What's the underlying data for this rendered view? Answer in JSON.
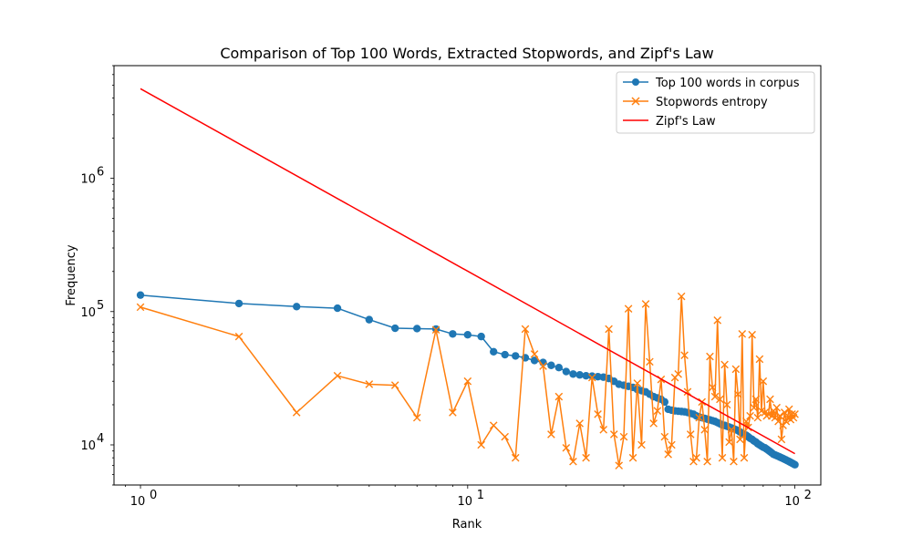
{
  "chart_data": {
    "type": "line",
    "title": "Comparison of Top 100 Words, Extracted Stopwords, and Zipf's Law",
    "xlabel": "Rank",
    "ylabel": "Frequency",
    "xscale": "log",
    "yscale": "log",
    "xlim": [
      0.83,
      120
    ],
    "ylim": [
      5000,
      7000000
    ],
    "x_ticks": [
      {
        "value": 1,
        "base": "10",
        "exp": "0"
      },
      {
        "value": 10,
        "base": "10",
        "exp": "1"
      },
      {
        "value": 100,
        "base": "10",
        "exp": "2"
      }
    ],
    "y_ticks": [
      {
        "value": 10000,
        "base": "10",
        "exp": "4"
      },
      {
        "value": 100000,
        "base": "10",
        "exp": "5"
      },
      {
        "value": 1000000,
        "base": "10",
        "exp": "6"
      }
    ],
    "grid": false,
    "legend_position": "top-right",
    "series": [
      {
        "name": "Top 100 words in corpus",
        "color": "#1f77b4",
        "marker": "circle",
        "x": [
          1,
          2,
          3,
          4,
          5,
          6,
          7,
          8,
          9,
          10,
          11,
          12,
          13,
          14,
          15,
          16,
          17,
          18,
          19,
          20,
          21,
          22,
          23,
          24,
          25,
          26,
          27,
          28,
          29,
          30,
          31,
          32,
          33,
          34,
          35,
          36,
          37,
          38,
          39,
          40,
          41,
          42,
          43,
          44,
          45,
          46,
          47,
          48,
          49,
          50,
          51,
          52,
          53,
          54,
          55,
          56,
          57,
          58,
          59,
          60,
          61,
          62,
          63,
          64,
          65,
          66,
          67,
          68,
          69,
          70,
          71,
          72,
          73,
          74,
          75,
          76,
          77,
          78,
          79,
          80,
          81,
          82,
          83,
          84,
          85,
          86,
          87,
          88,
          89,
          90,
          91,
          92,
          93,
          94,
          95,
          96,
          97,
          98,
          99,
          100
        ],
        "y": [
          133000,
          115000,
          109000,
          106000,
          87000,
          75000,
          74500,
          74000,
          68000,
          67000,
          65000,
          50000,
          47500,
          46500,
          45000,
          43000,
          41500,
          39500,
          38000,
          35500,
          34000,
          33500,
          33000,
          32800,
          32500,
          32200,
          31500,
          30000,
          28500,
          28000,
          27500,
          27000,
          26000,
          25500,
          25000,
          24000,
          23000,
          22500,
          22000,
          21000,
          18500,
          18200,
          18000,
          17900,
          17800,
          17700,
          17500,
          17200,
          17000,
          16500,
          16200,
          16000,
          15800,
          15600,
          15400,
          15200,
          15000,
          14700,
          14400,
          14100,
          14000,
          13800,
          13600,
          13400,
          13200,
          13000,
          12800,
          12500,
          12200,
          12000,
          11800,
          11500,
          11200,
          11000,
          10700,
          10500,
          10200,
          10000,
          9800,
          9600,
          9500,
          9300,
          9100,
          8900,
          8700,
          8500,
          8400,
          8300,
          8200,
          8100,
          8000,
          7900,
          7800,
          7700,
          7600,
          7500,
          7400,
          7300,
          7200,
          7100
        ]
      },
      {
        "name": "Stopwords entropy",
        "color": "#ff7f0e",
        "marker": "x",
        "x": [
          1,
          2,
          3,
          4,
          5,
          6,
          7,
          8,
          9,
          10,
          11,
          12,
          13,
          14,
          15,
          16,
          17,
          18,
          19,
          20,
          21,
          22,
          23,
          24,
          25,
          26,
          27,
          28,
          29,
          30,
          31,
          32,
          33,
          34,
          35,
          36,
          37,
          38,
          39,
          40,
          41,
          42,
          43,
          44,
          45,
          46,
          47,
          48,
          49,
          50,
          51,
          52,
          53,
          54,
          55,
          56,
          57,
          58,
          59,
          60,
          61,
          62,
          63,
          64,
          65,
          66,
          67,
          68,
          69,
          70,
          71,
          72,
          73,
          74,
          75,
          76,
          77,
          78,
          79,
          80,
          81,
          82,
          83,
          84,
          85,
          86,
          87,
          88,
          89,
          90,
          91,
          92,
          93,
          94,
          95,
          96,
          97,
          98,
          99,
          100
        ],
        "y": [
          108000,
          65000,
          17500,
          33000,
          28500,
          28000,
          16000,
          73000,
          17500,
          30000,
          10000,
          14000,
          11500,
          8000,
          74000,
          48000,
          39000,
          12000,
          23000,
          9500,
          7500,
          14500,
          8000,
          32000,
          17000,
          13000,
          74000,
          12000,
          7000,
          11500,
          105000,
          8000,
          29000,
          10000,
          114000,
          42000,
          14500,
          18000,
          31000,
          11500,
          8500,
          10000,
          32000,
          34000,
          130000,
          47000,
          25000,
          12000,
          7500,
          8000,
          16000,
          21000,
          13000,
          7500,
          46000,
          27000,
          23000,
          86000,
          22000,
          8000,
          40000,
          20000,
          10500,
          13000,
          7500,
          37000,
          24000,
          11000,
          68000,
          8000,
          15000,
          13500,
          16500,
          67000,
          19000,
          22000,
          16000,
          44000,
          18000,
          30000,
          17500,
          16500,
          17000,
          22000,
          16500,
          18000,
          16000,
          19000,
          15000,
          16500,
          11000,
          14000,
          17500,
          15000,
          16000,
          18500,
          15500,
          17000,
          16000,
          17000
        ]
      },
      {
        "name": "Zipf's Law",
        "color": "#ff0000",
        "marker": "none",
        "x": [
          1,
          100
        ],
        "y": [
          4700000,
          8600
        ]
      }
    ]
  }
}
